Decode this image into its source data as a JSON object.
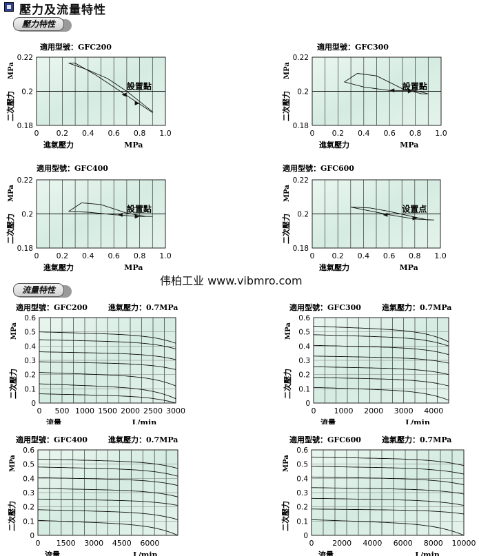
{
  "page": {
    "title": "壓力及流量特性",
    "pressure_heading": "壓力特性",
    "flow_heading": "流量特性",
    "watermark": "伟柏工业 www.vibmro.com"
  },
  "chart_data": [
    {
      "type": "line",
      "section": "pressure",
      "model_label": "適用型號：GFC200",
      "xlabel": "進氣壓力",
      "xunit": "MPa",
      "ylabel": "二次壓力",
      "yunit": "MPa",
      "annotation": "設置點",
      "xlim": [
        0,
        1.0
      ],
      "ylim": [
        0.18,
        0.22
      ],
      "xticks": [
        "0",
        "0.2",
        "0.4",
        "0.6",
        "0.8",
        "1.0"
      ],
      "yticks": [
        "0.22",
        "0.2",
        "0.18"
      ],
      "series": [
        {
          "values": [
            [
              0.25,
              0.2165
            ],
            [
              0.4,
              0.2125
            ],
            [
              0.55,
              0.2075
            ],
            [
              0.7,
              0.2
            ],
            [
              0.8,
              0.194
            ],
            [
              0.9,
              0.188
            ],
            [
              0.9,
              0.1875
            ],
            [
              0.75,
              0.195
            ],
            [
              0.6,
              0.2025
            ],
            [
              0.45,
              0.21
            ],
            [
              0.3,
              0.2165
            ],
            [
              0.25,
              0.2165
            ]
          ]
        }
      ],
      "arrows": [
        {
          "x": 0.66,
          "y": 0.198,
          "dir": "left"
        },
        {
          "x": 0.8,
          "y": 0.193,
          "dir": "right"
        }
      ]
    },
    {
      "type": "line",
      "section": "pressure",
      "model_label": "適用型號：GFC300",
      "xlabel": "進氣壓力",
      "xunit": "MPa",
      "ylabel": "二次壓力",
      "yunit": "MPa",
      "annotation": "設置點",
      "xlim": [
        0,
        1.0
      ],
      "ylim": [
        0.18,
        0.22
      ],
      "xticks": [
        "0",
        "0.2",
        "0.4",
        "0.6",
        "0.8",
        "1.0"
      ],
      "yticks": [
        "0.22",
        "0.2",
        "0.18"
      ],
      "series": [
        {
          "values": [
            [
              0.25,
              0.2055
            ],
            [
              0.35,
              0.2105
            ],
            [
              0.5,
              0.209
            ],
            [
              0.7,
              0.2015
            ],
            [
              0.85,
              0.1985
            ],
            [
              0.9,
              0.1985
            ],
            [
              0.8,
              0.2005
            ],
            [
              0.6,
              0.2005
            ],
            [
              0.4,
              0.2025
            ],
            [
              0.25,
              0.2055
            ]
          ]
        }
      ],
      "arrows": [
        {
          "x": 0.6,
          "y": 0.2005,
          "dir": "left"
        },
        {
          "x": 0.78,
          "y": 0.2,
          "dir": "right"
        }
      ]
    },
    {
      "type": "line",
      "section": "pressure",
      "model_label": "適用型號：GFC400",
      "xlabel": "進氣壓力",
      "xunit": "MPa",
      "ylabel": "二次壓力",
      "yunit": "MPa",
      "annotation": "設置點",
      "xlim": [
        0,
        1.0
      ],
      "ylim": [
        0.18,
        0.22
      ],
      "xticks": [
        "0",
        "0.2",
        "0.4",
        "0.6",
        "0.8",
        "1.0"
      ],
      "yticks": [
        "0.22",
        "0.2",
        "0.18"
      ],
      "series": [
        {
          "values": [
            [
              0.25,
              0.2015
            ],
            [
              0.35,
              0.2065
            ],
            [
              0.5,
              0.2055
            ],
            [
              0.7,
              0.2005
            ],
            [
              0.85,
              0.1985
            ],
            [
              0.9,
              0.1985
            ],
            [
              0.8,
              0.1985
            ],
            [
              0.6,
              0.1995
            ],
            [
              0.4,
              0.201
            ],
            [
              0.25,
              0.2015
            ]
          ]
        }
      ],
      "arrows": [
        {
          "x": 0.63,
          "y": 0.1995,
          "dir": "left"
        },
        {
          "x": 0.8,
          "y": 0.1985,
          "dir": "right"
        }
      ]
    },
    {
      "type": "line",
      "section": "pressure",
      "model_label": "適用型號：GFC600",
      "xlabel": "進氣壓力",
      "xunit": "MPa",
      "ylabel": "二次壓力",
      "yunit": "MPa",
      "annotation": "设置点",
      "xlim": [
        0,
        1.0
      ],
      "ylim": [
        0.18,
        0.22
      ],
      "xticks": [
        "0",
        "0.2",
        "0.4",
        "0.6",
        "0.8",
        "1.0"
      ],
      "yticks": [
        "0.22",
        "0.2",
        "0.18"
      ],
      "series": [
        {
          "values": [
            [
              0.3,
              0.204
            ],
            [
              0.45,
              0.2035
            ],
            [
              0.6,
              0.2015
            ],
            [
              0.75,
              0.199
            ],
            [
              0.9,
              0.1965
            ],
            [
              0.95,
              0.1965
            ],
            [
              0.8,
              0.197
            ],
            [
              0.6,
              0.1995
            ],
            [
              0.4,
              0.2025
            ],
            [
              0.3,
              0.204
            ]
          ]
        }
      ],
      "arrows": [
        {
          "x": 0.55,
          "y": 0.1995,
          "dir": "left"
        },
        {
          "x": 0.82,
          "y": 0.1975,
          "dir": "right"
        }
      ]
    },
    {
      "type": "line",
      "section": "flow",
      "model_label": "適用型號：GFC200",
      "inlet_label": "進氣壓力：0.7MPa",
      "xlabel": "流量",
      "xunit": "L/min",
      "ylabel": "二次壓力",
      "yunit": "MPa",
      "xlim": [
        0,
        3000
      ],
      "ylim": [
        0,
        0.6
      ],
      "xticks": [
        "0",
        "500",
        "1000",
        "1500",
        "2000",
        "2500",
        "3000"
      ],
      "yticks": [
        "0.6",
        "0.5",
        "0.4",
        "0.3",
        "0.2",
        "0.1",
        "0"
      ],
      "curves": [
        {
          "start": 0.5,
          "end": 0.42
        },
        {
          "start": 0.445,
          "end": 0.38
        },
        {
          "start": 0.36,
          "end": 0.305
        },
        {
          "start": 0.29,
          "end": 0.235
        },
        {
          "start": 0.215,
          "end": 0.12
        },
        {
          "start": 0.135,
          "end": 0.03
        },
        {
          "start": 0.065,
          "end": 0.0
        }
      ]
    },
    {
      "type": "line",
      "section": "flow",
      "model_label": "適用型號：GFC300",
      "inlet_label": "進氣壓力：0.7MPa",
      "xlabel": "流量",
      "xunit": "L/min",
      "ylabel": "二次壓力",
      "yunit": "MPa",
      "xlim": [
        0,
        4500
      ],
      "ylim": [
        0,
        0.6
      ],
      "xticks": [
        "0",
        "1000",
        "2000",
        "3000",
        "4000"
      ],
      "yticks": [
        "0.6",
        "0.5",
        "0.4",
        "0.3",
        "0.2",
        "0.1",
        "0"
      ],
      "curves": [
        {
          "start": 0.54,
          "end": 0.43
        },
        {
          "start": 0.48,
          "end": 0.4
        },
        {
          "start": 0.405,
          "end": 0.34
        },
        {
          "start": 0.33,
          "end": 0.28
        },
        {
          "start": 0.255,
          "end": 0.2
        },
        {
          "start": 0.18,
          "end": 0.12
        },
        {
          "start": 0.11,
          "end": 0.02
        }
      ]
    },
    {
      "type": "line",
      "section": "flow",
      "model_label": "適用型號：GFC400",
      "inlet_label": "進氣壓力：0.7MPa",
      "xlabel": "流量",
      "xunit": "L/min",
      "ylabel": "二次壓力",
      "yunit": "MPa",
      "xlim": [
        0,
        7500
      ],
      "ylim": [
        0,
        0.6
      ],
      "xticks": [
        "0",
        "1500",
        "3000",
        "4500",
        "6000"
      ],
      "yticks": [
        "0.6",
        "0.5",
        "0.4",
        "0.3",
        "0.2",
        "0.1",
        "0"
      ],
      "curves": [
        {
          "start": 0.535,
          "end": 0.47
        },
        {
          "start": 0.48,
          "end": 0.415
        },
        {
          "start": 0.405,
          "end": 0.35
        },
        {
          "start": 0.33,
          "end": 0.27
        },
        {
          "start": 0.255,
          "end": 0.21
        },
        {
          "start": 0.18,
          "end": 0.11
        },
        {
          "start": 0.105,
          "end": 0.0
        }
      ]
    },
    {
      "type": "line",
      "section": "flow",
      "model_label": "適用型號：GFC600",
      "inlet_label": "進氣壓力：0.7MPa",
      "xlabel": "流量",
      "xunit": "L/min",
      "ylabel": "二次壓力",
      "yunit": "MPa",
      "xlim": [
        0,
        10000
      ],
      "ylim": [
        0,
        0.6
      ],
      "xticks": [
        "0",
        "2000",
        "4000",
        "6000",
        "8000",
        "10000"
      ],
      "yticks": [
        "0.6",
        "0.5",
        "0.4",
        "0.3",
        "0.2",
        "0.1",
        "0"
      ],
      "curves": [
        {
          "start": 0.55,
          "end": 0.49
        },
        {
          "start": 0.485,
          "end": 0.43
        },
        {
          "start": 0.41,
          "end": 0.355
        },
        {
          "start": 0.335,
          "end": 0.29
        },
        {
          "start": 0.26,
          "end": 0.21
        },
        {
          "start": 0.185,
          "end": 0.15
        },
        {
          "start": 0.11,
          "end": 0.0
        }
      ]
    }
  ]
}
